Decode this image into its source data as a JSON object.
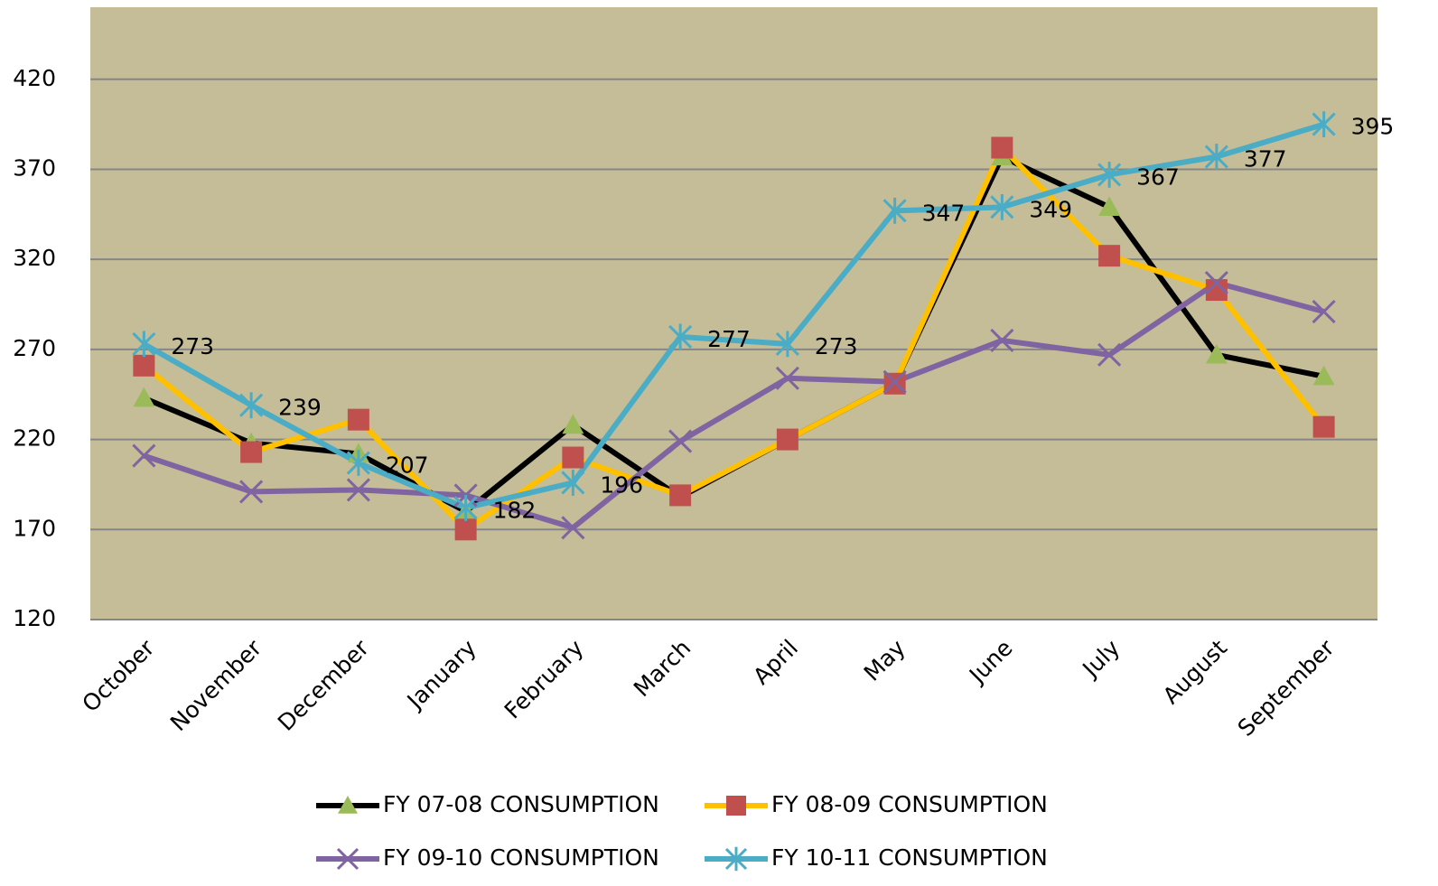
{
  "chart_data": {
    "type": "line",
    "categories": [
      "October",
      "November",
      "December",
      "January",
      "February",
      "March",
      "April",
      "May",
      "June",
      "July",
      "August",
      "September"
    ],
    "series": [
      {
        "name": "FY 07-08 CONSUMPTION",
        "color": "#000000",
        "marker_color": "#9bbb59",
        "marker": "triangle",
        "values": [
          243,
          218,
          212,
          180,
          228,
          188,
          220,
          251,
          377,
          349,
          267,
          255
        ]
      },
      {
        "name": "FY 08-09 CONSUMPTION",
        "color": "#ffc000",
        "marker_color": "#c0504d",
        "marker": "square",
        "values": [
          261,
          213,
          231,
          170,
          210,
          189,
          220,
          251,
          382,
          322,
          303,
          227
        ]
      },
      {
        "name": "FY 09-10 CONSUMPTION",
        "color": "#8064a2",
        "marker_color": "#8064a2",
        "marker": "x",
        "values": [
          211,
          191,
          192,
          189,
          171,
          219,
          254,
          252,
          275,
          267,
          307,
          291
        ]
      },
      {
        "name": "FY 10-11 CONSUMPTION",
        "color": "#4bacc6",
        "marker_color": "#4bacc6",
        "marker": "star",
        "values": [
          273,
          239,
          207,
          182,
          196,
          277,
          273,
          347,
          349,
          367,
          377,
          395
        ],
        "data_labels": true
      }
    ],
    "ylim": [
      120,
      460
    ],
    "yticks": [
      120,
      170,
      220,
      270,
      320,
      370,
      420
    ],
    "grid": true
  }
}
